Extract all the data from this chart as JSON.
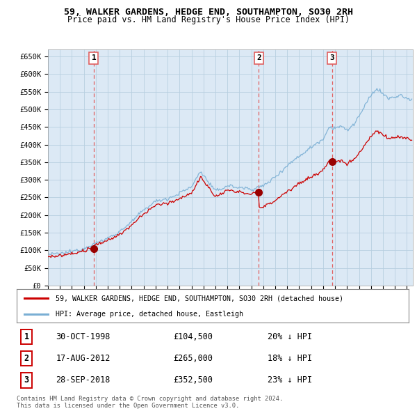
{
  "title": "59, WALKER GARDENS, HEDGE END, SOUTHAMPTON, SO30 2RH",
  "subtitle": "Price paid vs. HM Land Registry's House Price Index (HPI)",
  "ylim": [
    0,
    670000
  ],
  "yticks": [
    0,
    50000,
    100000,
    150000,
    200000,
    250000,
    300000,
    350000,
    400000,
    450000,
    500000,
    550000,
    600000,
    650000
  ],
  "ytick_labels": [
    "£0",
    "£50K",
    "£100K",
    "£150K",
    "£200K",
    "£250K",
    "£300K",
    "£350K",
    "£400K",
    "£450K",
    "£500K",
    "£550K",
    "£600K",
    "£650K"
  ],
  "hpi_color": "#7aafd4",
  "price_color": "#cc0000",
  "vline_color": "#e06060",
  "chart_bg": "#dce9f5",
  "background_color": "#ffffff",
  "grid_color": "#b8cfe0",
  "transactions": [
    {
      "date": 1998.83,
      "price": 104500,
      "label": "1"
    },
    {
      "date": 2012.62,
      "price": 265000,
      "label": "2"
    },
    {
      "date": 2018.74,
      "price": 352500,
      "label": "3"
    }
  ],
  "transaction_table": [
    {
      "num": "1",
      "date": "30-OCT-1998",
      "price": "£104,500",
      "hpi": "20% ↓ HPI"
    },
    {
      "num": "2",
      "date": "17-AUG-2012",
      "price": "£265,000",
      "hpi": "18% ↓ HPI"
    },
    {
      "num": "3",
      "date": "28-SEP-2018",
      "price": "£352,500",
      "hpi": "23% ↓ HPI"
    }
  ],
  "legend_entries": [
    "59, WALKER GARDENS, HEDGE END, SOUTHAMPTON, SO30 2RH (detached house)",
    "HPI: Average price, detached house, Eastleigh"
  ],
  "footnote": "Contains HM Land Registry data © Crown copyright and database right 2024.\nThis data is licensed under the Open Government Licence v3.0."
}
